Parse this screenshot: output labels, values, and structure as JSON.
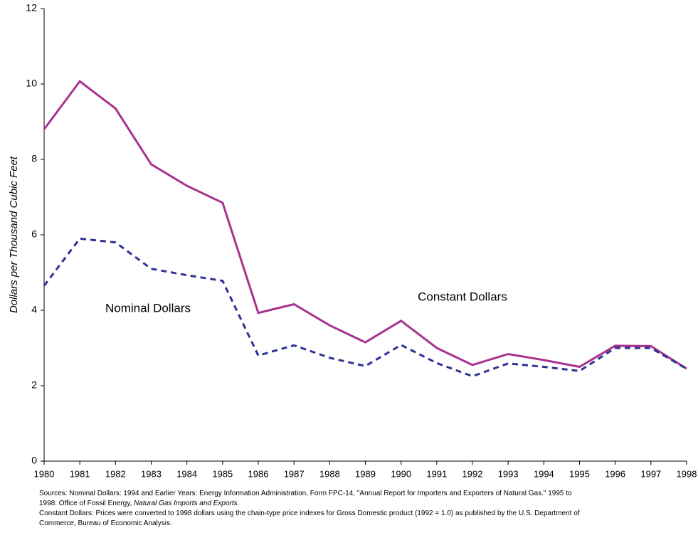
{
  "chart_data": {
    "type": "line",
    "y_label": "Dollars per Thousand Cubic Feet",
    "x": [
      1980,
      1981,
      1982,
      1983,
      1984,
      1985,
      1986,
      1987,
      1988,
      1989,
      1990,
      1991,
      1992,
      1993,
      1994,
      1995,
      1996,
      1997,
      1998
    ],
    "xlim": [
      1980,
      1998
    ],
    "xticks": [
      1980,
      1981,
      1982,
      1983,
      1984,
      1985,
      1986,
      1987,
      1988,
      1989,
      1990,
      1991,
      1992,
      1993,
      1994,
      1995,
      1996,
      1997,
      1998
    ],
    "ylim": [
      0,
      12
    ],
    "yticks": [
      0,
      2,
      4,
      6,
      8,
      10,
      12
    ],
    "grid": false,
    "series": [
      {
        "name": "Constant Dollars",
        "color": "#a8328f",
        "style": "solid",
        "values": [
          8.8,
          10.07,
          9.35,
          7.87,
          7.3,
          6.85,
          3.93,
          4.16,
          3.6,
          3.15,
          3.72,
          3.0,
          2.55,
          2.84,
          2.68,
          2.5,
          3.06,
          3.05,
          2.45
        ]
      },
      {
        "name": "Nominal Dollars",
        "color": "#2e3192",
        "style": "dashed",
        "values": [
          4.65,
          5.9,
          5.8,
          5.1,
          4.93,
          4.78,
          2.8,
          3.07,
          2.74,
          2.52,
          3.08,
          2.6,
          2.25,
          2.59,
          2.5,
          2.39,
          3.0,
          3.0,
          2.45
        ]
      }
    ],
    "notes": [
      [
        {
          "text": "Sources:  Nominal Dollars:  1994 and Earlier Years:  Energy Information Administration, Form FPC-14, \"Annual Report for Importers and Exporters of Natural Gas.\"  1995 to",
          "italic": false
        }
      ],
      [
        {
          "text": "1998:  Office of Fossil Energy,  ",
          "italic": false
        },
        {
          "text": "Natural Gas Imports and Exports.",
          "italic": true
        }
      ],
      [
        {
          "text": "Constant Dollars:  Prices were converted to 1998 dollars using the chain-type price indexes for Gross Domestic product (1992 = 1.0) as published by the U.S. Department of",
          "italic": false
        }
      ],
      [
        {
          "text": "Commerce, Bureau of Economic Analysis.",
          "italic": false
        }
      ]
    ]
  }
}
